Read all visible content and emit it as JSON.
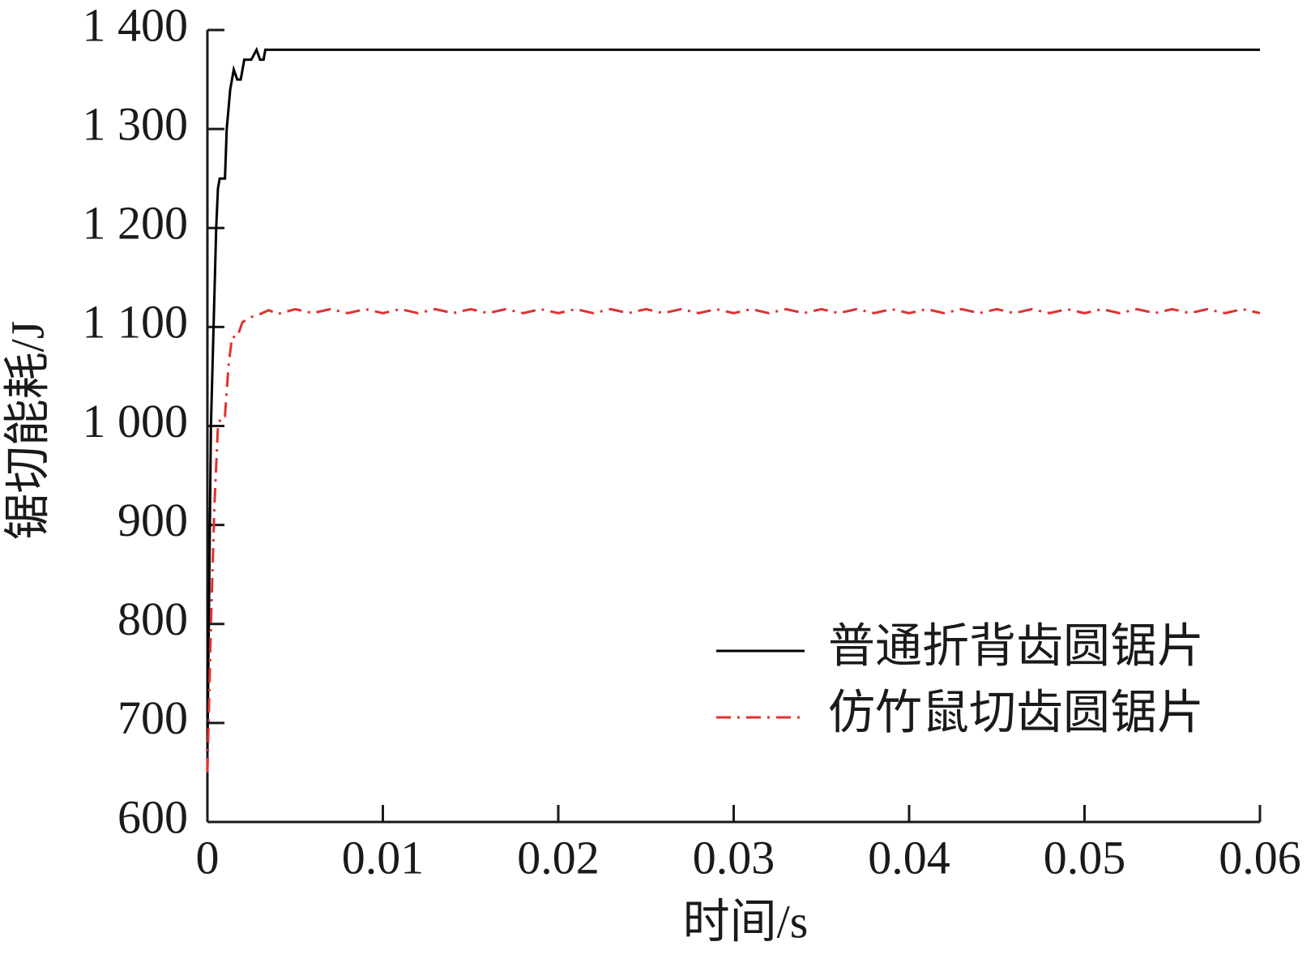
{
  "chart_data": {
    "type": "line",
    "xlabel": "时间/s",
    "ylabel": "锯切能耗/J",
    "xlim": [
      0,
      0.06
    ],
    "xticks": [
      0,
      0.01,
      0.02,
      0.03,
      0.04,
      0.05,
      0.06
    ],
    "ylim": [
      600,
      1400
    ],
    "yticks": [
      {
        "value": 1400,
        "label": "1 400"
      },
      {
        "value": 1300,
        "label": "1 300"
      },
      {
        "value": 1200,
        "label": "1 200"
      },
      {
        "value": 1100,
        "label": "1 100"
      },
      {
        "value": 1000,
        "label": "1 000"
      },
      900,
      800,
      700,
      600
    ],
    "legend": "lower right",
    "series": [
      {
        "name": "普通折背齿圆锯片",
        "color": "#000000",
        "dash": "solid",
        "x": [
          0,
          0.0002,
          0.0005,
          0.0006,
          0.0007,
          0.001,
          0.0011,
          0.0013,
          0.0015,
          0.0017,
          0.0019,
          0.0021,
          0.0025,
          0.0028,
          0.003,
          0.0032,
          0.0033,
          0.06
        ],
        "values": [
          670,
          1000,
          1200,
          1240,
          1250,
          1250,
          1300,
          1340,
          1360,
          1350,
          1350,
          1370,
          1370,
          1380,
          1370,
          1370,
          1380,
          1380
        ]
      },
      {
        "name": "仿竹鼠切齿圆锯片",
        "color": "#e0312f",
        "dash": "dashdot",
        "x": [
          0,
          0.0002,
          0.0004,
          0.0006,
          0.0008,
          0.001,
          0.0012,
          0.0014,
          0.0017,
          0.002,
          0.0025,
          0.003,
          0.0035,
          0.004,
          0.005,
          0.006,
          0.007,
          0.008,
          0.009,
          0.01,
          0.011,
          0.012,
          0.013,
          0.014,
          0.015,
          0.016,
          0.017,
          0.018,
          0.019,
          0.02,
          0.021,
          0.022,
          0.023,
          0.024,
          0.025,
          0.026,
          0.027,
          0.028,
          0.029,
          0.03,
          0.031,
          0.032,
          0.033,
          0.034,
          0.035,
          0.036,
          0.037,
          0.038,
          0.039,
          0.04,
          0.041,
          0.042,
          0.043,
          0.044,
          0.045,
          0.046,
          0.047,
          0.048,
          0.049,
          0.05,
          0.051,
          0.052,
          0.053,
          0.054,
          0.055,
          0.056,
          0.057,
          0.058,
          0.059,
          0.06
        ],
        "values": [
          650,
          800,
          920,
          1000,
          1010,
          1010,
          1060,
          1090,
          1090,
          1105,
          1110,
          1113,
          1117,
          1113,
          1118,
          1114,
          1118,
          1114,
          1118,
          1114,
          1118,
          1114,
          1118,
          1114,
          1118,
          1114,
          1118,
          1114,
          1118,
          1114,
          1118,
          1114,
          1118,
          1114,
          1118,
          1114,
          1118,
          1114,
          1118,
          1114,
          1118,
          1114,
          1118,
          1114,
          1118,
          1114,
          1118,
          1114,
          1118,
          1114,
          1118,
          1114,
          1118,
          1114,
          1118,
          1114,
          1118,
          1114,
          1118,
          1114,
          1118,
          1114,
          1118,
          1114,
          1118,
          1114,
          1118,
          1114,
          1118,
          1114
        ]
      }
    ]
  }
}
